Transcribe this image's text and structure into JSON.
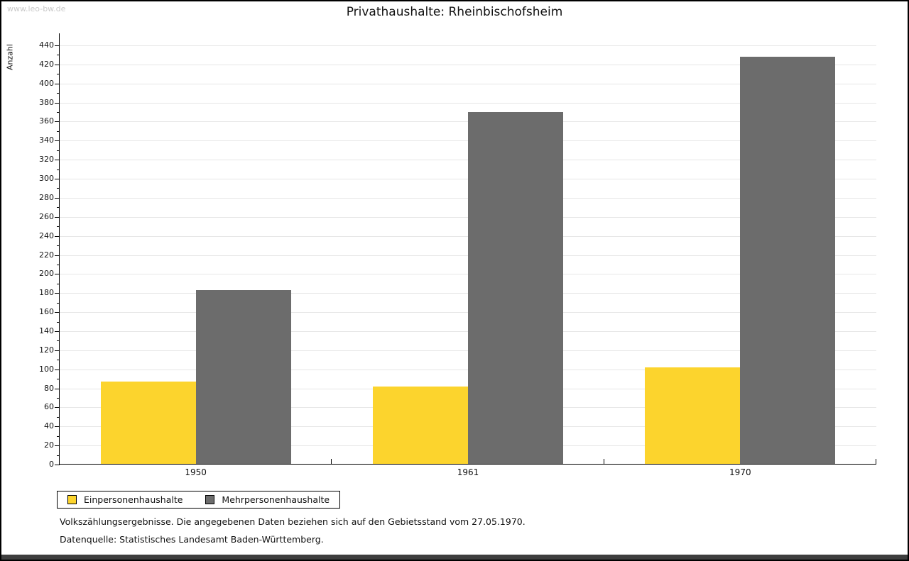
{
  "page": {
    "watermark": "www.leo-bw.de"
  },
  "chart_data": {
    "type": "bar",
    "title": "Privathaushalte: Rheinbischofsheim",
    "ylabel": "Anzahl",
    "xlabel": "",
    "categories": [
      "1950",
      "1961",
      "1970"
    ],
    "series": [
      {
        "name": "Einpersonenhaushalte",
        "color": "#fcd42d",
        "values": [
          87,
          82,
          102
        ]
      },
      {
        "name": "Mehrpersonenhaushalte",
        "color": "#6c6c6c",
        "values": [
          183,
          370,
          428
        ]
      }
    ],
    "ylim": [
      0,
      440
    ],
    "ytick_step": 20,
    "yminor_step": 10,
    "grid": "horizontal-major",
    "gridline_color": "#e6e6e6",
    "axis_color": "#000000",
    "legend_position": "bottom-left"
  },
  "footer": {
    "line1": "Volkszählungsergebnisse. Die angegebenen Daten beziehen sich auf den Gebietsstand vom 27.05.1970.",
    "line2": "Datenquelle: Statistisches Landesamt Baden-Württemberg."
  }
}
